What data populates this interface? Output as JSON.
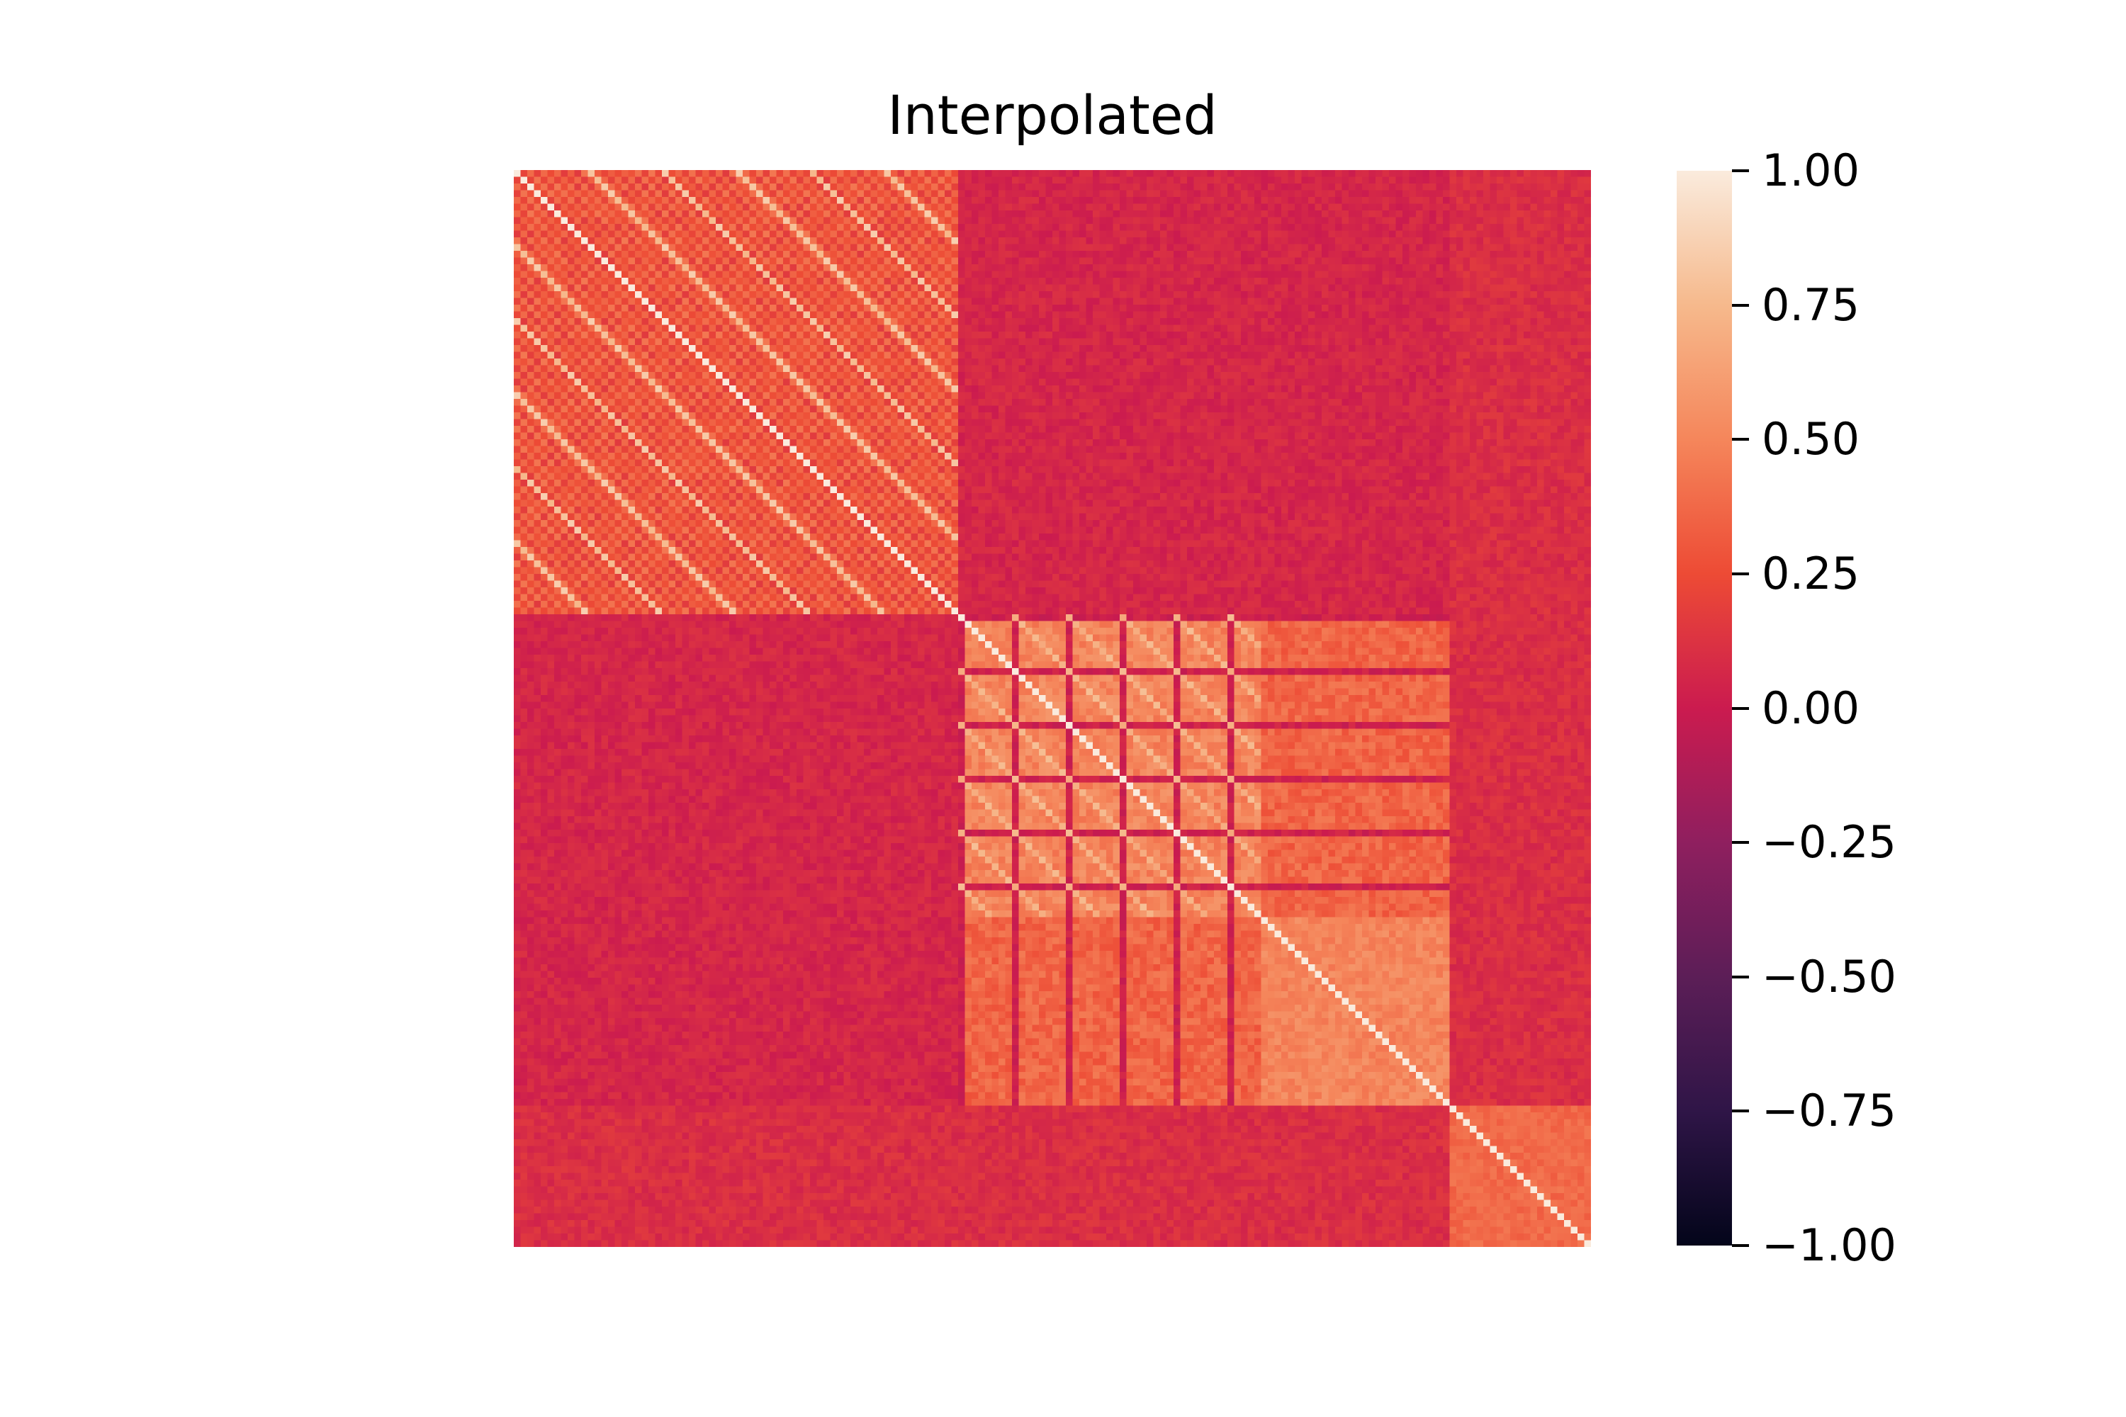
{
  "chart_data": {
    "type": "heatmap",
    "title": "Interpolated",
    "xlabel": "",
    "ylabel": "",
    "matrix_size": 160,
    "blocks": [
      {
        "start": 0,
        "end": 65,
        "pattern": "periodic",
        "period": 11
      },
      {
        "start": 66,
        "end": 110,
        "pattern": "lattice",
        "period": 8
      },
      {
        "start": 111,
        "end": 138,
        "pattern": "uniform"
      },
      {
        "start": 139,
        "end": 159,
        "pattern": "small"
      }
    ],
    "colorbar": {
      "min": -1.0,
      "max": 1.0,
      "cmap": "rocket",
      "ticks": [
        1.0,
        0.75,
        0.5,
        0.25,
        0.0,
        -0.25,
        -0.5,
        -0.75,
        -1.0
      ],
      "tick_labels": [
        "1.00",
        "0.75",
        "0.50",
        "0.25",
        "0.00",
        "−0.25",
        "−0.50",
        "−0.75",
        "−1.00"
      ]
    }
  }
}
